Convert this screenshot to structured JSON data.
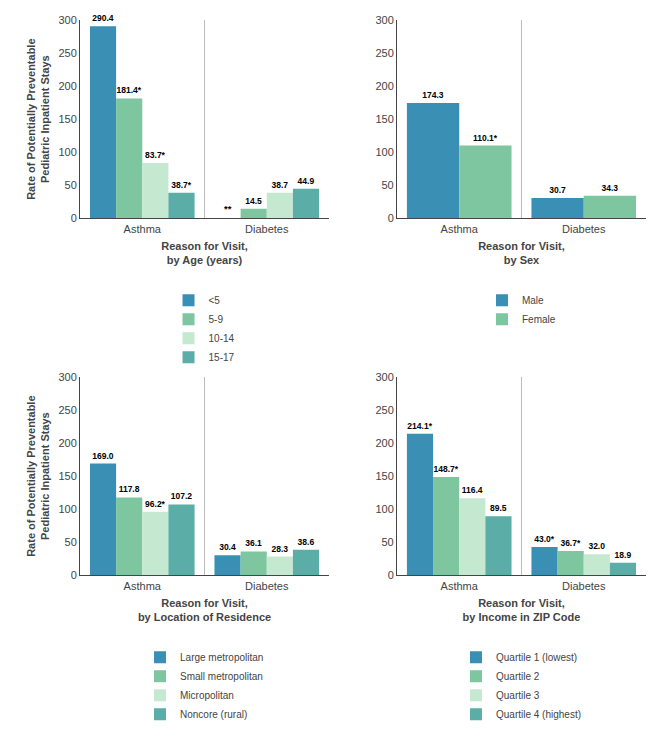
{
  "chart_data": [
    {
      "type": "bar",
      "xlabel": "Reason for Visit,\nby Age (years)",
      "ylabel": "Rate of Potentially Preventable\nPediatric Inpatient Stays",
      "categories": [
        "Asthma",
        "Diabetes"
      ],
      "series": [
        {
          "name": "<5",
          "color": "#3A8FB5",
          "values": [
            290.4,
            null
          ],
          "value_labels": [
            "290.4",
            "**"
          ]
        },
        {
          "name": "5-9",
          "color": "#7DC6A0",
          "values": [
            181.4,
            14.5
          ],
          "value_labels": [
            "181.4*",
            "14.5"
          ]
        },
        {
          "name": "10-14",
          "color": "#C5E8D0",
          "values": [
            83.7,
            38.7
          ],
          "value_labels": [
            "83.7*",
            "38.7"
          ]
        },
        {
          "name": "15-17",
          "color": "#5BADA8",
          "values": [
            38.7,
            44.9
          ],
          "value_labels": [
            "38.7*",
            "44.9"
          ]
        }
      ],
      "ylim": [
        0,
        300
      ],
      "yticks": [
        0,
        50,
        100,
        150,
        200,
        250,
        300
      ],
      "grid": false,
      "legend": "bottom",
      "data_labels": true
    },
    {
      "type": "bar",
      "xlabel": "Reason for Visit,\nby Sex",
      "categories": [
        "Asthma",
        "Diabetes"
      ],
      "series": [
        {
          "name": "Male",
          "color": "#3A8FB5",
          "values": [
            174.3,
            30.7
          ],
          "value_labels": [
            "174.3",
            "30.7"
          ]
        },
        {
          "name": "Female",
          "color": "#7DC6A0",
          "values": [
            110.1,
            34.3
          ],
          "value_labels": [
            "110.1*",
            "34.3"
          ]
        }
      ],
      "ylim": [
        0,
        300
      ],
      "yticks": [
        0,
        50,
        100,
        150,
        200,
        250,
        300
      ],
      "grid": false,
      "legend": "bottom",
      "data_labels": true
    },
    {
      "type": "bar",
      "xlabel": "Reason for Visit,\nby Location of Residence",
      "ylabel": "Rate of Potentially Preventable\nPediatric Inpatient Stays",
      "categories": [
        "Asthma",
        "Diabetes"
      ],
      "series": [
        {
          "name": "Large metropolitan",
          "color": "#3A8FB5",
          "values": [
            169.0,
            30.4
          ],
          "value_labels": [
            "169.0",
            "30.4"
          ]
        },
        {
          "name": "Small metropolitan",
          "color": "#7DC6A0",
          "values": [
            117.8,
            36.1
          ],
          "value_labels": [
            "117.8",
            "36.1"
          ]
        },
        {
          "name": "Micropolitan",
          "color": "#C5E8D0",
          "values": [
            96.2,
            28.3
          ],
          "value_labels": [
            "96.2*",
            "28.3"
          ]
        },
        {
          "name": "Noncore (rural)",
          "color": "#5BADA8",
          "values": [
            107.2,
            38.6
          ],
          "value_labels": [
            "107.2",
            "38.6"
          ]
        }
      ],
      "ylim": [
        0,
        300
      ],
      "yticks": [
        0,
        50,
        100,
        150,
        200,
        250,
        300
      ],
      "grid": false,
      "legend": "bottom",
      "data_labels": true
    },
    {
      "type": "bar",
      "xlabel": "Reason for Visit,\nby Income in ZIP Code",
      "categories": [
        "Asthma",
        "Diabetes"
      ],
      "series": [
        {
          "name": "Quartile 1 (lowest)",
          "color": "#3A8FB5",
          "values": [
            214.1,
            43.0
          ],
          "value_labels": [
            "214.1*",
            "43.0*"
          ]
        },
        {
          "name": "Quartile 2",
          "color": "#7DC6A0",
          "values": [
            148.7,
            36.7
          ],
          "value_labels": [
            "148.7*",
            "36.7*"
          ]
        },
        {
          "name": "Quartile 3",
          "color": "#C5E8D0",
          "values": [
            116.4,
            32.0
          ],
          "value_labels": [
            "116.4",
            "32.0"
          ]
        },
        {
          "name": "Quartile 4 (highest)",
          "color": "#5BADA8",
          "values": [
            89.5,
            18.9
          ],
          "value_labels": [
            "89.5",
            "18.9"
          ]
        }
      ],
      "ylim": [
        0,
        300
      ],
      "yticks": [
        0,
        50,
        100,
        150,
        200,
        250,
        300
      ],
      "grid": false,
      "legend": "bottom",
      "data_labels": true
    }
  ]
}
